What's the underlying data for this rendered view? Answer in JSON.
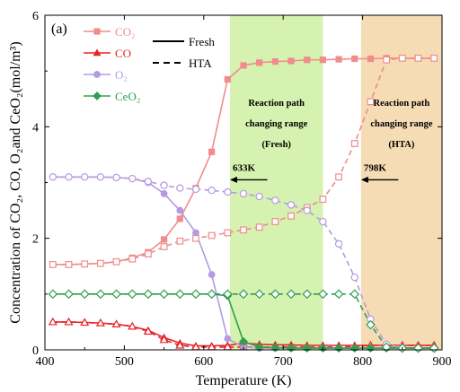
{
  "chart_data": {
    "type": "line",
    "panel_label": "(a)",
    "xlabel": "Temperature (K)",
    "ylabel": "Concentration of CO₂, CO, O₂and CeO₂(mol/m³)",
    "xlim": [
      400,
      900
    ],
    "ylim": [
      0,
      6
    ],
    "xticks": [
      "400",
      "500",
      "600",
      "700",
      "800",
      "900"
    ],
    "yticks": [
      "0",
      "2",
      "4",
      "6"
    ],
    "grid": false,
    "legend_placement": "top-left",
    "legend": {
      "species": [
        {
          "label": "CO₂",
          "color": "#f08c8c",
          "marker": "square"
        },
        {
          "label": "CO",
          "color": "#e8242c",
          "marker": "triangle"
        },
        {
          "label": "O₂",
          "color": "#b49ae0",
          "marker": "circle"
        },
        {
          "label": "CeO₂",
          "color": "#2ea050",
          "marker": "diamond"
        }
      ],
      "line_styles": [
        {
          "label": "Fresh",
          "dash": "solid"
        },
        {
          "label": "HTA",
          "dash": "dashed"
        }
      ]
    },
    "regions": [
      {
        "x0": 633,
        "x1": 750,
        "color": "#d6f2b0",
        "lines": [
          "Reaction path",
          "changing range",
          "(Fresh)"
        ]
      },
      {
        "x0": 798,
        "x1": 900,
        "color": "#f6dcb4",
        "lines": [
          "Reaction path",
          "changing range",
          "(HTA)"
        ]
      }
    ],
    "arrows": [
      {
        "label": "633K",
        "from_x": 680,
        "to_x": 633,
        "y": 3.05
      },
      {
        "label": "798K",
        "from_x": 845,
        "to_x": 798,
        "y": 3.05
      }
    ],
    "series": [
      {
        "species": "CO₂",
        "condition": "Fresh",
        "color": "#f08c8c",
        "marker": "square",
        "x": [
          410,
          430,
          450,
          470,
          490,
          510,
          530,
          550,
          570,
          590,
          610,
          630,
          650,
          670,
          690,
          710,
          730,
          750,
          770,
          790,
          810,
          830,
          850,
          870,
          890
        ],
        "y": [
          1.53,
          1.53,
          1.54,
          1.55,
          1.58,
          1.65,
          1.75,
          1.98,
          2.35,
          2.9,
          3.55,
          4.85,
          5.1,
          5.15,
          5.17,
          5.18,
          5.2,
          5.2,
          5.21,
          5.22,
          5.22,
          5.23,
          5.23,
          5.23,
          5.23
        ]
      },
      {
        "species": "CO₂",
        "condition": "HTA",
        "color": "#f08c8c",
        "marker": "square",
        "x": [
          410,
          430,
          450,
          470,
          490,
          510,
          530,
          550,
          570,
          590,
          610,
          630,
          650,
          670,
          690,
          710,
          730,
          750,
          770,
          790,
          810,
          830,
          850,
          870,
          890
        ],
        "y": [
          1.53,
          1.53,
          1.54,
          1.55,
          1.58,
          1.63,
          1.72,
          1.85,
          1.95,
          2.0,
          2.05,
          2.1,
          2.15,
          2.2,
          2.3,
          2.4,
          2.55,
          2.7,
          3.1,
          3.7,
          4.45,
          5.2,
          5.23,
          5.23,
          5.23
        ]
      },
      {
        "species": "CO",
        "condition": "Fresh",
        "color": "#e8242c",
        "marker": "triangle",
        "x": [
          410,
          430,
          450,
          470,
          490,
          510,
          530,
          550,
          570,
          590,
          610,
          630,
          650,
          670,
          690,
          710,
          730,
          750,
          770,
          790,
          810,
          830,
          850,
          870,
          890
        ],
        "y": [
          0.5,
          0.5,
          0.49,
          0.48,
          0.46,
          0.42,
          0.35,
          0.22,
          0.12,
          0.07,
          0.07,
          0.08,
          0.12,
          0.1,
          0.09,
          0.09,
          0.08,
          0.08,
          0.08,
          0.08,
          0.08,
          0.08,
          0.08,
          0.08,
          0.08
        ]
      },
      {
        "species": "CO",
        "condition": "HTA",
        "color": "#e8242c",
        "marker": "triangle",
        "x": [
          410,
          430,
          450,
          470,
          490,
          510,
          530,
          550,
          570,
          590,
          610,
          630,
          650,
          670,
          690,
          710,
          730,
          750,
          770,
          790,
          810,
          830,
          850,
          870,
          890
        ],
        "y": [
          0.5,
          0.5,
          0.49,
          0.48,
          0.46,
          0.42,
          0.33,
          0.18,
          0.08,
          0.05,
          0.05,
          0.05,
          0.05,
          0.05,
          0.05,
          0.05,
          0.05,
          0.05,
          0.05,
          0.06,
          0.08,
          0.08,
          0.08,
          0.08,
          0.08
        ]
      },
      {
        "species": "O₂",
        "condition": "Fresh",
        "color": "#b49ae0",
        "marker": "circle",
        "x": [
          410,
          430,
          450,
          470,
          490,
          510,
          530,
          550,
          570,
          590,
          610,
          630,
          650,
          670,
          690,
          710,
          730,
          750,
          770,
          790,
          810,
          830,
          850,
          870,
          890
        ],
        "y": [
          3.1,
          3.1,
          3.1,
          3.1,
          3.09,
          3.07,
          3.0,
          2.8,
          2.5,
          2.1,
          1.35,
          0.2,
          0.05,
          0.03,
          0.03,
          0.03,
          0.03,
          0.03,
          0.03,
          0.03,
          0.03,
          0.03,
          0.03,
          0.03,
          0.03
        ]
      },
      {
        "species": "O₂",
        "condition": "HTA",
        "color": "#b49ae0",
        "marker": "circle",
        "x": [
          410,
          430,
          450,
          470,
          490,
          510,
          530,
          550,
          570,
          590,
          610,
          630,
          650,
          670,
          690,
          710,
          730,
          750,
          770,
          790,
          810,
          830,
          850,
          870,
          890
        ],
        "y": [
          3.1,
          3.1,
          3.1,
          3.1,
          3.09,
          3.07,
          3.02,
          2.95,
          2.9,
          2.88,
          2.86,
          2.83,
          2.8,
          2.75,
          2.68,
          2.6,
          2.5,
          2.3,
          1.9,
          1.3,
          0.55,
          0.1,
          0.04,
          0.03,
          0.03
        ]
      },
      {
        "species": "CeO₂",
        "condition": "Fresh",
        "color": "#2ea050",
        "marker": "diamond",
        "x": [
          410,
          430,
          450,
          470,
          490,
          510,
          530,
          550,
          570,
          590,
          610,
          630,
          650,
          670,
          690,
          710,
          730,
          750,
          770,
          790,
          810,
          830,
          850,
          870,
          890
        ],
        "y": [
          1.0,
          1.0,
          1.0,
          1.0,
          1.0,
          1.0,
          1.0,
          1.0,
          1.0,
          1.0,
          1.0,
          0.97,
          0.15,
          0.05,
          0.04,
          0.03,
          0.03,
          0.03,
          0.03,
          0.03,
          0.03,
          0.03,
          0.03,
          0.03,
          0.03
        ]
      },
      {
        "species": "CeO₂",
        "condition": "HTA",
        "color": "#2ea050",
        "marker": "diamond",
        "x": [
          410,
          430,
          450,
          470,
          490,
          510,
          530,
          550,
          570,
          590,
          610,
          630,
          650,
          670,
          690,
          710,
          730,
          750,
          770,
          790,
          810,
          830,
          850,
          870,
          890
        ],
        "y": [
          1.0,
          1.0,
          1.0,
          1.0,
          1.0,
          1.0,
          1.0,
          1.0,
          1.0,
          1.0,
          1.0,
          1.0,
          1.0,
          1.0,
          1.0,
          1.0,
          1.0,
          1.0,
          1.0,
          1.0,
          0.45,
          0.05,
          0.03,
          0.03,
          0.03
        ]
      }
    ]
  }
}
